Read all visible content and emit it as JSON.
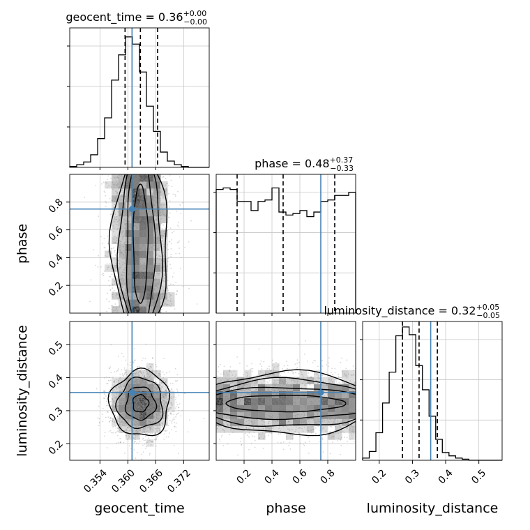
{
  "chart_data": {
    "type": "corner",
    "parameters": [
      {
        "name": "geocent_time",
        "title": "geocent_time = 0.36",
        "title_sup": "+0.00",
        "title_sub": "−0.00",
        "range": [
          0.3475,
          0.3775
        ],
        "ticks": [
          0.354,
          0.36,
          0.366,
          0.372
        ],
        "tick_labels": [
          "0.354",
          "0.360",
          "0.366",
          "0.372"
        ],
        "quantiles": [
          0.3594,
          0.3627,
          0.3664
        ],
        "truth": 0.3609,
        "hist_edges_start": 0.3475,
        "hist_bin_width": 0.0015,
        "hist_counts": [
          1,
          3,
          6,
          14,
          32,
          55,
          97,
          125,
          145,
          137,
          106,
          68,
          40,
          17,
          7,
          3,
          1,
          0,
          0,
          0
        ],
        "hist_max": 155
      },
      {
        "name": "phase",
        "title": "phase = 0.48",
        "title_sup": "+0.37",
        "title_sub": "−0.33",
        "range": [
          0.0,
          1.0
        ],
        "ticks": [
          0.2,
          0.4,
          0.6,
          0.8
        ],
        "tick_labels": [
          "0.2",
          "0.4",
          "0.6",
          "0.8"
        ],
        "quantiles": [
          0.15,
          0.48,
          0.85
        ],
        "truth": 0.75,
        "hist_edges_start": 0.0,
        "hist_bin_width": 0.05,
        "hist_counts": [
          82,
          83,
          82,
          74,
          74,
          68,
          74,
          75,
          83,
          67,
          65,
          66,
          68,
          64,
          67,
          74,
          75,
          78,
          78,
          80
        ],
        "hist_max": 92
      },
      {
        "name": "luminosity_distance",
        "title": "luminosity_distance = 0.32",
        "title_sup": "+0.05",
        "title_sub": "−0.05",
        "range": [
          0.15,
          0.57
        ],
        "ticks": [
          0.2,
          0.3,
          0.4,
          0.5
        ],
        "tick_labels": [
          "0.2",
          "0.3",
          "0.4",
          "0.5"
        ],
        "quantiles": [
          0.27,
          0.32,
          0.375
        ],
        "truth": 0.355,
        "hist_edges_start": 0.15,
        "hist_bin_width": 0.02,
        "hist_counts": [
          2,
          8,
          25,
          52,
          80,
          113,
          121,
          114,
          86,
          64,
          40,
          19,
          7,
          4,
          2,
          1,
          0,
          0,
          0,
          0
        ],
        "hist_max": 126
      }
    ],
    "pairs": [
      {
        "x": "geocent_time",
        "y": "phase",
        "truth": [
          0.3609,
          0.75
        ]
      },
      {
        "x": "geocent_time",
        "y": "luminosity_distance",
        "truth": [
          0.3609,
          0.355
        ]
      },
      {
        "x": "phase",
        "y": "luminosity_distance",
        "truth": [
          0.75,
          0.355
        ]
      }
    ],
    "colors": {
      "truth": "#4682b4",
      "hist": "#000000",
      "quantile": "#000000",
      "grid": "#c8c8c8",
      "density_max": "#1a1a1a",
      "scatter": "#8c8c8c"
    },
    "grid": true
  }
}
